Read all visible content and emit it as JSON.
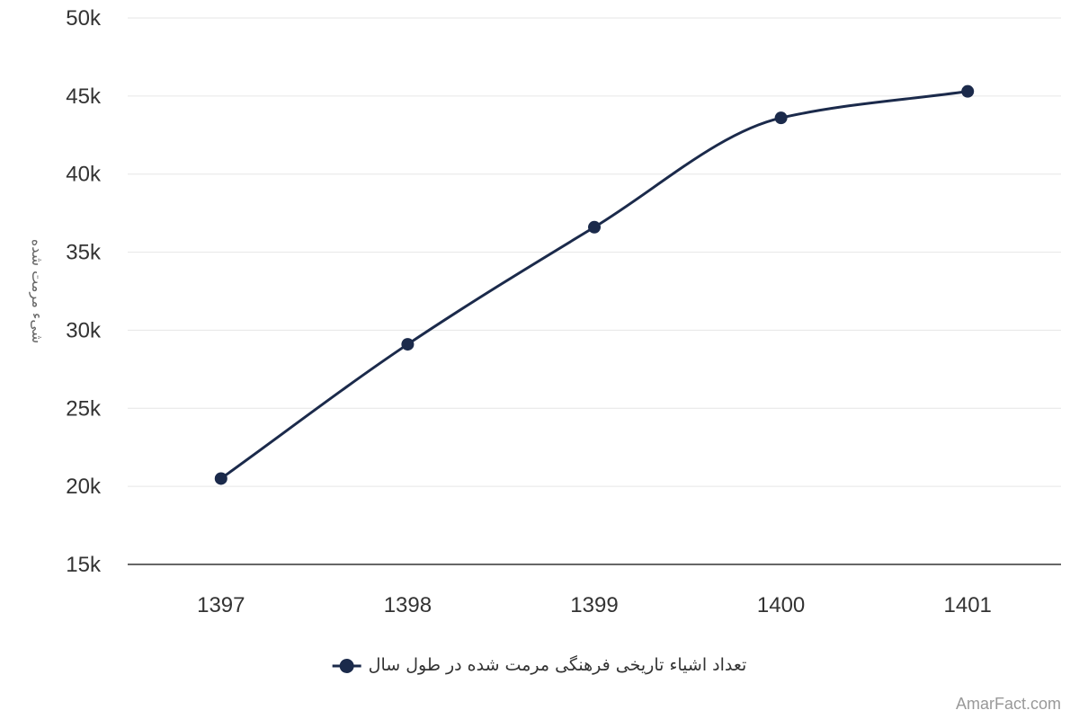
{
  "chart_data": {
    "type": "line",
    "categories": [
      "1397",
      "1398",
      "1399",
      "1400",
      "1401"
    ],
    "series": [
      {
        "name": "تعداد اشیاء تاریخی فرهنگی مرمت شده در طول سال",
        "values": [
          20500,
          29100,
          36600,
          43600,
          45300
        ]
      }
    ],
    "ylabel": "شیء مرمت شده",
    "ylim": [
      15000,
      50000
    ],
    "yticks": [
      15000,
      20000,
      25000,
      30000,
      35000,
      40000,
      45000,
      50000
    ],
    "ytick_labels": [
      "15k",
      "20k",
      "25k",
      "30k",
      "35k",
      "40k",
      "45k",
      "50k"
    ],
    "grid": true,
    "legend_position": "bottom",
    "line_color": "#1b2a4b"
  },
  "credit": "AmarFact.com"
}
